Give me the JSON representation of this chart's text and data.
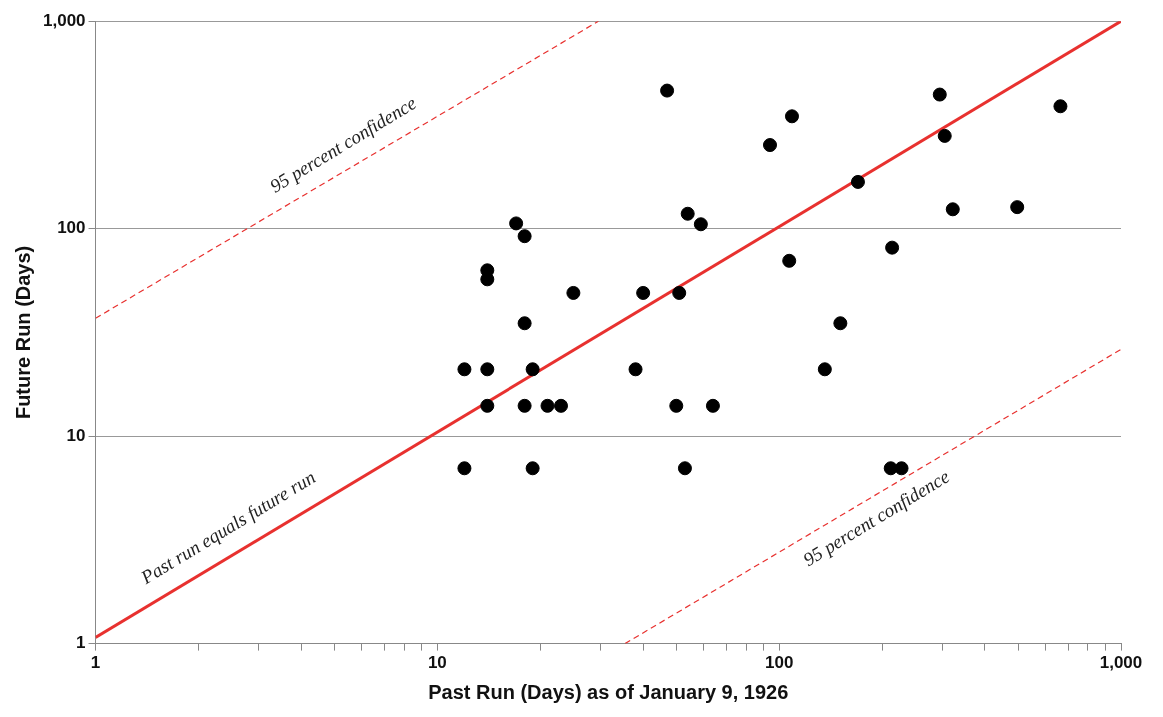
{
  "chart_data": {
    "type": "scatter",
    "xlabel": "Past Run (Days) as of January 9, 1926",
    "ylabel": "Future Run (Days)",
    "log": "xy",
    "grid": "y",
    "legend": false,
    "xlim": [
      1,
      1000
    ],
    "ylim": [
      1,
      1000
    ],
    "xticks": [
      1,
      {
        "value": 2,
        "label": null
      },
      {
        "value": 3,
        "label": null
      },
      {
        "value": 4,
        "label": null
      },
      {
        "value": 5,
        "label": null
      },
      {
        "value": 6,
        "label": null
      },
      {
        "value": 7,
        "label": null
      },
      {
        "value": 8,
        "label": null
      },
      {
        "value": 9,
        "label": null
      },
      10,
      {
        "value": 20,
        "label": null
      },
      {
        "value": 30,
        "label": null
      },
      {
        "value": 40,
        "label": null
      },
      {
        "value": 50,
        "label": null
      },
      {
        "value": 60,
        "label": null
      },
      {
        "value": 70,
        "label": null
      },
      {
        "value": 80,
        "label": null
      },
      {
        "value": 90,
        "label": null
      },
      100,
      {
        "value": 200,
        "label": null
      },
      {
        "value": 300,
        "label": null
      },
      {
        "value": 400,
        "label": null
      },
      {
        "value": 500,
        "label": null
      },
      {
        "value": 600,
        "label": null
      },
      {
        "value": 700,
        "label": null
      },
      {
        "value": 800,
        "label": null
      },
      {
        "value": 900,
        "label": null
      },
      {
        "value": 1000,
        "label": "1,000"
      }
    ],
    "yticks": [
      1,
      10,
      100,
      {
        "value": 1000,
        "label": "1,000"
      }
    ],
    "series": [
      {
        "color": "#000000",
        "marker": "circle",
        "x": [
          12,
          12,
          14,
          14,
          14,
          14,
          17,
          18,
          18,
          18,
          19,
          19,
          21,
          23,
          25,
          38,
          40,
          47,
          50,
          51,
          53,
          54,
          59,
          64,
          94,
          107,
          109,
          136,
          151,
          170,
          214,
          212,
          228,
          295,
          305,
          322,
          497,
          665
        ],
        "values": [
          7,
          21,
          63,
          57,
          21,
          14,
          106,
          92,
          35,
          14,
          21,
          7,
          14,
          14,
          49,
          21,
          49,
          463,
          14,
          49,
          7,
          118,
          105,
          14,
          253,
          70,
          348,
          21,
          35,
          168,
          81,
          7,
          7,
          443,
          280,
          124,
          127,
          389
        ]
      },
      {
        "type": "line",
        "color": "#e8312f",
        "marker": "none",
        "line_style": "solid",
        "x": [
          1,
          1000
        ],
        "values": [
          1.07,
          1000
        ]
      },
      {
        "type": "line",
        "color": "#e8312f",
        "marker": "none",
        "line_style": "dashed",
        "x": [
          1,
          29.6
        ],
        "values": [
          37,
          1000
        ]
      },
      {
        "type": "line",
        "color": "#e8312f",
        "marker": "none",
        "line_style": "dashed",
        "x": [
          35.4,
          1000
        ],
        "values": [
          1,
          26.2
        ]
      }
    ],
    "annotations": [
      "95 percent confidence",
      "95 percent confidence",
      "Past run equals future run"
    ]
  }
}
